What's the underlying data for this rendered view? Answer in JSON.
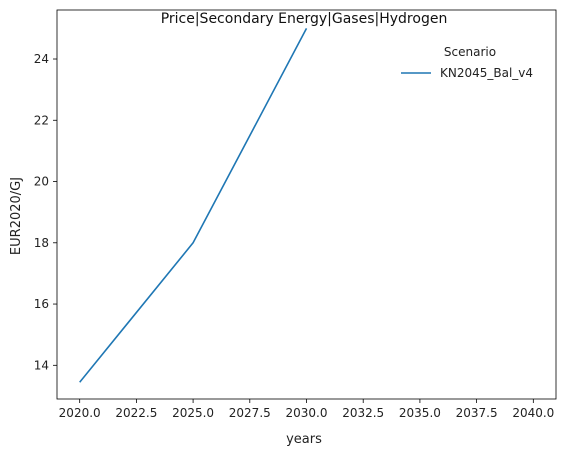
{
  "chart_data": {
    "type": "line",
    "title": "Price|Secondary Energy|Gases|Hydrogen",
    "xlabel": "years",
    "ylabel": "EUR2020/GJ",
    "xlim": [
      2019.0,
      2041.0
    ],
    "ylim": [
      12.9,
      25.6
    ],
    "x_ticks": [
      2020.0,
      2022.5,
      2025.0,
      2027.5,
      2030.0,
      2032.5,
      2035.0,
      2037.5,
      2040.0
    ],
    "x_tick_labels": [
      "2020.0",
      "2022.5",
      "2025.0",
      "2027.5",
      "2030.0",
      "2032.5",
      "2035.0",
      "2037.5",
      "2040.0"
    ],
    "y_ticks": [
      14,
      16,
      18,
      20,
      22,
      24
    ],
    "y_tick_labels": [
      "14",
      "16",
      "18",
      "20",
      "22",
      "24"
    ],
    "grid": false,
    "legend": {
      "title": "Scenario",
      "placement": "top-right"
    },
    "series": [
      {
        "name": "KN2045_Bal_v4",
        "color": "#1f77b4",
        "x": [
          2020,
          2025,
          2030
        ],
        "y": [
          13.45,
          18.0,
          25.0
        ]
      }
    ]
  }
}
